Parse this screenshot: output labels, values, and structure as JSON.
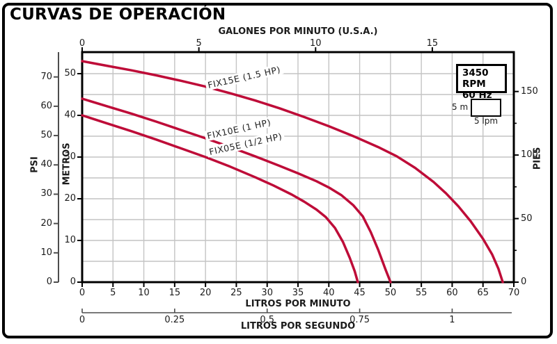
{
  "title": "CURVAS DE OPERACIÓN",
  "badge": {
    "line1": "3450 RPM",
    "line2": "60 Hz"
  },
  "scale_indicator": {
    "left_label": "5 m",
    "bottom_label": "5 lpm"
  },
  "colors": {
    "curve": "#be0c38",
    "grid": "#c4c4c4",
    "axis": "#000000",
    "sub_axis": "#4d4d4d",
    "text": "#1b1b1b"
  },
  "axes": {
    "top_gpm": {
      "title": "GALONES POR MINUTO (U.S.A.)",
      "ticks": [
        "0",
        "5",
        "10",
        "15"
      ]
    },
    "bottom_lpm": {
      "title": "LITROS POR MINUTO",
      "ticks": [
        "0",
        "5",
        "10",
        "15",
        "20",
        "25",
        "30",
        "35",
        "40",
        "45",
        "50",
        "55",
        "60",
        "65",
        "70"
      ]
    },
    "bottom_lps": {
      "title": "LITROS POR SEGUNDO",
      "ticks": [
        "0",
        "0.25",
        "0.5",
        "0.75",
        "1"
      ]
    },
    "left_psi": {
      "title": "PSI",
      "ticks": [
        "0",
        "10",
        "20",
        "30",
        "40",
        "50",
        "60",
        "70"
      ]
    },
    "left_metros": {
      "title": "METROS",
      "ticks": [
        "0",
        "10",
        "20",
        "30",
        "40",
        "50"
      ]
    },
    "right_pies": {
      "title": "PIES",
      "ticks": [
        "0",
        "50",
        "100",
        "150"
      ],
      "minor_ticks": [
        "25",
        "75",
        "125"
      ]
    }
  },
  "chart_data": {
    "type": "line",
    "title": "CURVAS DE OPERACIÓN",
    "xlabel": "LITROS POR MINUTO",
    "ylabel": "METROS",
    "x_range_lpm": [
      0,
      70
    ],
    "y_range_m": [
      0,
      55
    ],
    "secondary_axes": {
      "top_gpm_range": [
        0,
        18.5
      ],
      "bottom_lps_range": [
        0,
        1.16
      ],
      "left_psi_range": [
        0,
        78
      ],
      "right_pies_range": [
        0,
        181
      ]
    },
    "grid": "on, every 5 lpm and 5 m",
    "legend_position": "labels along curves",
    "series": [
      {
        "name": "FIX15E (1.5 HP)",
        "points_lpm_m": [
          [
            0,
            53
          ],
          [
            4,
            51.9
          ],
          [
            8,
            50.8
          ],
          [
            12,
            49.6
          ],
          [
            16,
            48.3
          ],
          [
            20,
            46.9
          ],
          [
            24,
            45.3
          ],
          [
            28,
            43.6
          ],
          [
            32,
            41.7
          ],
          [
            36,
            39.6
          ],
          [
            40,
            37.4
          ],
          [
            44,
            35.0
          ],
          [
            48,
            32.4
          ],
          [
            51,
            30.2
          ],
          [
            54,
            27.4
          ],
          [
            57,
            24.0
          ],
          [
            59,
            21.3
          ],
          [
            61,
            18.2
          ],
          [
            63,
            14.6
          ],
          [
            65,
            10.4
          ],
          [
            66.5,
            6.6
          ],
          [
            67.5,
            3.2
          ],
          [
            68.2,
            0
          ]
        ]
      },
      {
        "name": "FIX10E (1 HP)",
        "points_lpm_m": [
          [
            0,
            44
          ],
          [
            4,
            42.2
          ],
          [
            8,
            40.4
          ],
          [
            12,
            38.5
          ],
          [
            16,
            36.5
          ],
          [
            20,
            34.5
          ],
          [
            24,
            32.4
          ],
          [
            28,
            30.2
          ],
          [
            32,
            27.9
          ],
          [
            35,
            26.1
          ],
          [
            38,
            24.2
          ],
          [
            40,
            22.7
          ],
          [
            42,
            20.9
          ],
          [
            44,
            18.4
          ],
          [
            45.5,
            15.8
          ],
          [
            46.8,
            12.0
          ],
          [
            48,
            7.8
          ],
          [
            49.2,
            3.0
          ],
          [
            50,
            0
          ]
        ]
      },
      {
        "name": "FIX05E (1/2 HP)",
        "points_lpm_m": [
          [
            0,
            40
          ],
          [
            4,
            38.1
          ],
          [
            8,
            36.2
          ],
          [
            12,
            34.2
          ],
          [
            16,
            32.1
          ],
          [
            20,
            30.0
          ],
          [
            24,
            27.7
          ],
          [
            28,
            25.2
          ],
          [
            31,
            23.2
          ],
          [
            34,
            21.0
          ],
          [
            36,
            19.3
          ],
          [
            38,
            17.4
          ],
          [
            39.5,
            15.6
          ],
          [
            41,
            13.0
          ],
          [
            42.3,
            9.6
          ],
          [
            43.4,
            5.8
          ],
          [
            44.2,
            2.6
          ],
          [
            44.7,
            0
          ]
        ]
      }
    ]
  }
}
